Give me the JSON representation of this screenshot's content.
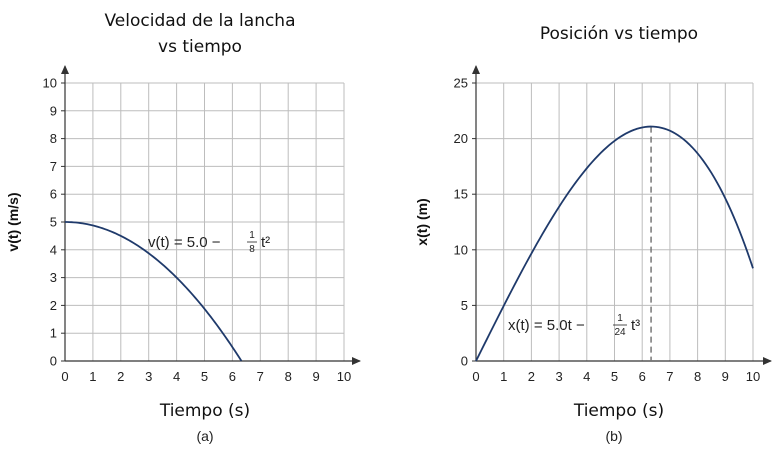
{
  "chart_data": [
    {
      "type": "line",
      "title_lines": [
        "Velocidad de la lancha",
        "vs tiempo"
      ],
      "xlabel": "Tiempo (s)",
      "ylabel": "v(t) (m/s)",
      "xlim": [
        0,
        10
      ],
      "ylim": [
        0,
        10
      ],
      "xticks": [
        "0",
        "1",
        "2",
        "3",
        "4",
        "5",
        "6",
        "7",
        "8",
        "9",
        "10"
      ],
      "yticks": [
        "0",
        "1",
        "2",
        "3",
        "4",
        "5",
        "6",
        "7",
        "8",
        "9",
        "10"
      ],
      "grid": true,
      "sublabel": "(a)",
      "equation": {
        "lhs": "v(t) = 5.0 −",
        "num": "1",
        "den": "8",
        "rhs": "t²"
      },
      "series": [
        {
          "x": [
            0,
            1,
            2,
            3,
            4,
            5,
            6,
            6.32
          ],
          "y": [
            5.0,
            4.875,
            4.5,
            3.875,
            3.0,
            1.875,
            0.5,
            0.0
          ]
        }
      ]
    },
    {
      "type": "line",
      "title_lines": [
        "Posición vs tiempo"
      ],
      "xlabel": "Tiempo (s)",
      "ylabel": "x(t) (m)",
      "xlim": [
        0,
        10
      ],
      "ylim": [
        0,
        25
      ],
      "xticks": [
        "0",
        "1",
        "2",
        "3",
        "4",
        "5",
        "6",
        "7",
        "8",
        "9",
        "10"
      ],
      "yticks": [
        "0",
        "5",
        "10",
        "15",
        "20",
        "25"
      ],
      "grid": true,
      "sublabel": "(b)",
      "equation": {
        "lhs": "x(t) = 5.0t −",
        "num": "1",
        "den": "24",
        "rhs": "t³"
      },
      "marker_x": 6.32,
      "series": [
        {
          "x": [
            0,
            1,
            2,
            3,
            4,
            5,
            6,
            6.32,
            7,
            8,
            9,
            10
          ],
          "y": [
            0,
            4.96,
            9.67,
            13.88,
            17.33,
            19.79,
            21.0,
            21.08,
            20.71,
            18.67,
            14.63,
            8.33
          ]
        }
      ]
    }
  ]
}
